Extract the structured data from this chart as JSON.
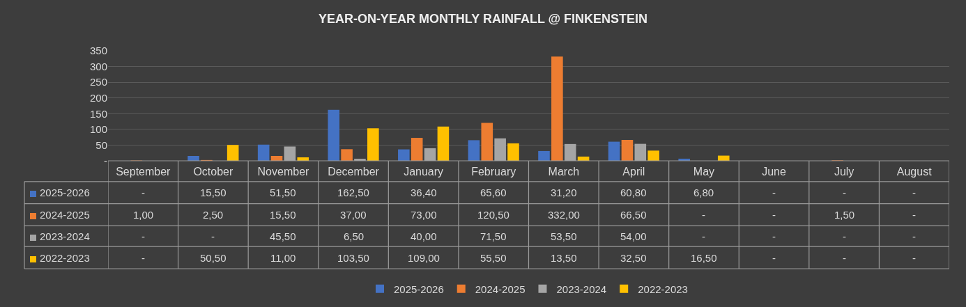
{
  "chart_data": {
    "type": "bar",
    "title": "YEAR-ON-YEAR MONTHLY RAINFALL @ FINKENSTEIN",
    "categories": [
      "September",
      "October",
      "November",
      "December",
      "January",
      "February",
      "March",
      "April",
      "May",
      "June",
      "July",
      "August"
    ],
    "series": [
      {
        "name": "2025-2026",
        "color": "#4472c4",
        "values": [
          0,
          15.5,
          51.5,
          162.5,
          36.4,
          65.6,
          31.2,
          60.8,
          6.8,
          0,
          0,
          0
        ],
        "value_labels": [
          "-",
          "15,50",
          "51,50",
          "162,50",
          "36,40",
          "65,60",
          "31,20",
          "60,80",
          "6,80",
          "-",
          "-",
          "-"
        ]
      },
      {
        "name": "2024-2025",
        "color": "#ed7d31",
        "values": [
          1,
          2.5,
          15.5,
          37,
          73,
          120.5,
          332,
          66.5,
          0,
          0,
          1.5,
          0
        ],
        "value_labels": [
          "1,00",
          "2,50",
          "15,50",
          "37,00",
          "73,00",
          "120,50",
          "332,00",
          "66,50",
          "-",
          "-",
          "1,50",
          "-"
        ]
      },
      {
        "name": "2023-2024",
        "color": "#a5a5a5",
        "values": [
          0,
          0,
          45.5,
          6.5,
          40,
          71.5,
          53.5,
          54,
          0,
          0,
          0,
          0
        ],
        "value_labels": [
          "-",
          "-",
          "45,50",
          "6,50",
          "40,00",
          "71,50",
          "53,50",
          "54,00",
          "-",
          "-",
          "-",
          "-"
        ]
      },
      {
        "name": "2022-2023",
        "color": "#ffc000",
        "values": [
          0,
          50.5,
          11,
          103.5,
          109,
          55.5,
          13.5,
          32.5,
          16.5,
          0,
          0,
          0
        ],
        "value_labels": [
          "-",
          "50,50",
          "11,00",
          "103,50",
          "109,00",
          "55,50",
          "13,50",
          "32,50",
          "16,50",
          "-",
          "-",
          "-"
        ]
      }
    ],
    "ylim": [
      0,
      350
    ],
    "yticks": [
      {
        "value": 0,
        "label": "-"
      },
      50,
      100,
      150,
      200,
      250,
      300,
      350
    ],
    "grid": "y",
    "legend": "bottom"
  }
}
